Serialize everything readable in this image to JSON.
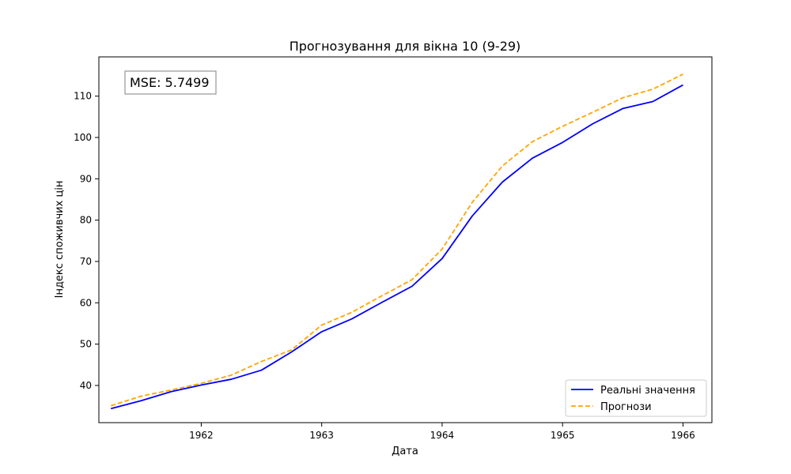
{
  "chart_data": {
    "type": "line",
    "title": "Прогнозування для вікна 10 (9-29)",
    "xlabel": "Дата",
    "ylabel": "Індекс споживчих цін",
    "xlim": [
      1961.15,
      1966.24
    ],
    "ylim": [
      31,
      119.5
    ],
    "x_ticks": [
      1962,
      1963,
      1964,
      1965,
      1966
    ],
    "y_ticks": [
      40,
      50,
      60,
      70,
      80,
      90,
      100,
      110
    ],
    "grid": false,
    "legend_position": "bottom-right",
    "annotation": "MSE: 5.7499",
    "x": [
      1961.25,
      1961.5,
      1961.75,
      1962.0,
      1962.25,
      1962.5,
      1962.75,
      1963.0,
      1963.25,
      1963.5,
      1963.75,
      1964.0,
      1964.25,
      1964.5,
      1964.75,
      1965.0,
      1965.25,
      1965.5,
      1965.75,
      1966.0
    ],
    "series": [
      {
        "name": "Реальні значення",
        "color": "#0000ff",
        "dash": "solid",
        "values": [
          34.4,
          36.3,
          38.5,
          40.1,
          41.5,
          43.7,
          48.1,
          53.0,
          56.1,
          60.1,
          64.0,
          70.7,
          81.0,
          89.2,
          95.0,
          98.8,
          103.3,
          107.0,
          108.7,
          112.7
        ]
      },
      {
        "name": "Прогнози",
        "color": "#ffa500",
        "dash": "dashed",
        "values": [
          35.1,
          37.4,
          38.9,
          40.5,
          42.5,
          45.8,
          48.6,
          54.6,
          57.7,
          61.7,
          65.6,
          73.0,
          84.3,
          93.1,
          99.0,
          102.7,
          106.1,
          109.6,
          111.7,
          115.3
        ]
      }
    ]
  }
}
